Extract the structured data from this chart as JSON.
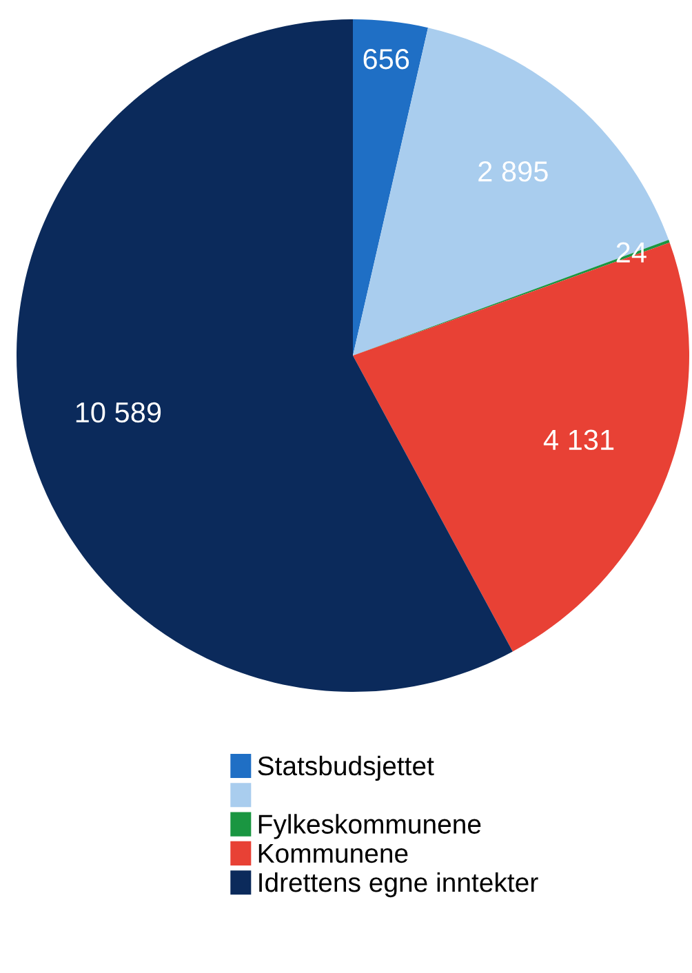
{
  "chart_data": {
    "type": "pie",
    "categories": [
      "Statsbudsjettet",
      null,
      "Fylkeskommunene",
      "Kommunene",
      "Idrettens egne inntekter"
    ],
    "values": [
      656,
      2895,
      24,
      4131,
      10589
    ],
    "value_labels": [
      "656",
      "2 895",
      "24",
      "4 131",
      "10 589"
    ],
    "colors": [
      "#1f6fc5",
      "#a9cdee",
      "#1a9641",
      "#e84135",
      "#0b2a5b"
    ],
    "legend": "bottom"
  }
}
